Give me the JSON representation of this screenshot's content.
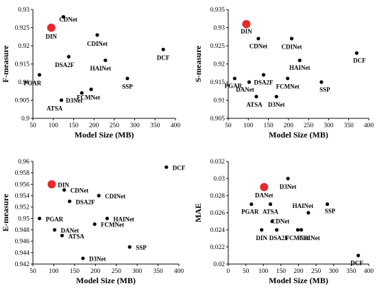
{
  "charts": {
    "chart_data": [
      {
        "type": "scatter",
        "id": "fmeasure",
        "xlabel": "Model Size (MB)",
        "ylabel": "F-measure",
        "xlim": [
          50,
          400
        ],
        "ylim": [
          0.9,
          0.93
        ],
        "xticks": [
          50,
          100,
          150,
          200,
          250,
          300,
          350,
          400
        ],
        "xtick_labels": [
          "50",
          "100",
          "150",
          "200",
          "250",
          "300",
          "350",
          "400"
        ],
        "yticks": [
          0.9,
          0.905,
          0.91,
          0.915,
          0.92,
          0.925,
          0.93
        ],
        "ytick_labels": [
          "0.9",
          "0.905",
          "0.91",
          "0.915",
          "0.92",
          "0.925",
          "0.93"
        ],
        "grid": false,
        "points": [
          {
            "label": "DIN",
            "x": 95,
            "y": 0.925,
            "highlight": true
          },
          {
            "label": "CDNet",
            "x": 125,
            "y": 0.928
          },
          {
            "label": "CDINet",
            "x": 208,
            "y": 0.923
          },
          {
            "label": "DCF",
            "x": 370,
            "y": 0.919
          },
          {
            "label": "DSA2F",
            "x": 138,
            "y": 0.917
          },
          {
            "label": "HAINet",
            "x": 228,
            "y": 0.916
          },
          {
            "label": "PGAR",
            "x": 66,
            "y": 0.912
          },
          {
            "label": "SSP",
            "x": 282,
            "y": 0.911
          },
          {
            "label": "FCMNet",
            "x": 193,
            "y": 0.908
          },
          {
            "label": "D3Net",
            "x": 170,
            "y": 0.907
          },
          {
            "label": "ATSA",
            "x": 120,
            "y": 0.905
          }
        ]
      },
      {
        "type": "scatter",
        "id": "smeasure",
        "xlabel": "Model Size (MB)",
        "ylabel": "S-measure",
        "xlim": [
          50,
          400
        ],
        "ylim": [
          0.905,
          0.935
        ],
        "xticks": [
          50,
          100,
          150,
          200,
          250,
          300,
          350,
          400
        ],
        "xtick_labels": [
          "50",
          "100",
          "150",
          "200",
          "250",
          "300",
          "350",
          "400"
        ],
        "yticks": [
          0.905,
          0.91,
          0.915,
          0.92,
          0.925,
          0.93,
          0.935
        ],
        "ytick_labels": [
          "0.905",
          "0.91",
          "0.915",
          "0.92",
          "0.925",
          "0.93",
          "0.935"
        ],
        "grid": false,
        "points": [
          {
            "label": "DIN",
            "x": 95,
            "y": 0.931,
            "highlight": true
          },
          {
            "label": "CDNet",
            "x": 125,
            "y": 0.927
          },
          {
            "label": "CDINet",
            "x": 208,
            "y": 0.927
          },
          {
            "label": "DCF",
            "x": 370,
            "y": 0.923
          },
          {
            "label": "HAINet",
            "x": 228,
            "y": 0.921
          },
          {
            "label": "DSA2F",
            "x": 138,
            "y": 0.917
          },
          {
            "label": "PGAR",
            "x": 66,
            "y": 0.916
          },
          {
            "label": "FCMNet",
            "x": 198,
            "y": 0.916
          },
          {
            "label": "DANet",
            "x": 102,
            "y": 0.915
          },
          {
            "label": "SSP",
            "x": 282,
            "y": 0.915
          },
          {
            "label": "ATSA",
            "x": 120,
            "y": 0.911
          },
          {
            "label": "D3Net",
            "x": 170,
            "y": 0.911
          }
        ]
      },
      {
        "type": "scatter",
        "id": "emeasure",
        "xlabel": "Model Size (MB)",
        "ylabel": "E-measure",
        "xlim": [
          50,
          400
        ],
        "ylim": [
          0.942,
          0.96
        ],
        "xticks": [
          50,
          100,
          150,
          200,
          250,
          300,
          350,
          400
        ],
        "xtick_labels": [
          "50",
          "100",
          "150",
          "200",
          "250",
          "300",
          "350",
          "400"
        ],
        "yticks": [
          0.942,
          0.944,
          0.946,
          0.948,
          0.95,
          0.952,
          0.954,
          0.956,
          0.958,
          0.96
        ],
        "ytick_labels": [
          "0.942",
          "0.944",
          "0.946",
          "0.948",
          "0.95",
          "0.952",
          "0.954",
          "0.956",
          "0.958",
          "0.96"
        ],
        "grid": false,
        "points": [
          {
            "label": "DCF",
            "x": 370,
            "y": 0.959
          },
          {
            "label": "DIN",
            "x": 95,
            "y": 0.956,
            "highlight": true
          },
          {
            "label": "CDNet",
            "x": 125,
            "y": 0.955
          },
          {
            "label": "CDINet",
            "x": 208,
            "y": 0.954
          },
          {
            "label": "DSA2F",
            "x": 138,
            "y": 0.953
          },
          {
            "label": "PGAR",
            "x": 66,
            "y": 0.95
          },
          {
            "label": "HAINet",
            "x": 228,
            "y": 0.95
          },
          {
            "label": "FCMNet",
            "x": 198,
            "y": 0.949
          },
          {
            "label": "DANet",
            "x": 102,
            "y": 0.948
          },
          {
            "label": "ATSA",
            "x": 120,
            "y": 0.947
          },
          {
            "label": "SSP",
            "x": 282,
            "y": 0.945
          },
          {
            "label": "D3Net",
            "x": 170,
            "y": 0.943
          }
        ]
      },
      {
        "type": "scatter",
        "id": "mae",
        "xlabel": "Model Size (MB)",
        "ylabel": "MAE",
        "xlim": [
          0,
          400
        ],
        "ylim": [
          0.02,
          0.032
        ],
        "xticks": [
          0,
          50,
          100,
          150,
          200,
          250,
          300,
          350,
          400
        ],
        "xtick_labels": [
          "0",
          "50",
          "100",
          "150",
          "200",
          "250",
          "300",
          "350",
          "400"
        ],
        "yticks": [
          0.02,
          0.022,
          0.024,
          0.026,
          0.028,
          0.03,
          0.032
        ],
        "ytick_labels": [
          "0.02",
          "0.022",
          "0.024",
          "0.026",
          "0.028",
          "0.03",
          "0.032"
        ],
        "grid": false,
        "points": [
          {
            "label": "D3Net",
            "x": 170,
            "y": 0.03
          },
          {
            "label": "DANet",
            "x": 102,
            "y": 0.029,
            "highlight": true
          },
          {
            "label": "PGAR",
            "x": 66,
            "y": 0.027
          },
          {
            "label": "ATSA",
            "x": 120,
            "y": 0.027
          },
          {
            "label": "SSP",
            "x": 282,
            "y": 0.027
          },
          {
            "label": "HAINet",
            "x": 228,
            "y": 0.026
          },
          {
            "label": "CDNet",
            "x": 125,
            "y": 0.025
          },
          {
            "label": "DIN",
            "x": 95,
            "y": 0.024
          },
          {
            "label": "DSA2F",
            "x": 138,
            "y": 0.024
          },
          {
            "label": "FCMNet",
            "x": 198,
            "y": 0.024
          },
          {
            "label": "CDINet",
            "x": 208,
            "y": 0.024
          },
          {
            "label": "DCF",
            "x": 370,
            "y": 0.021
          }
        ]
      }
    ]
  },
  "colors": {
    "point": "#000000",
    "highlight": "#e8292e",
    "axis": "#000000",
    "text": "#000000"
  }
}
